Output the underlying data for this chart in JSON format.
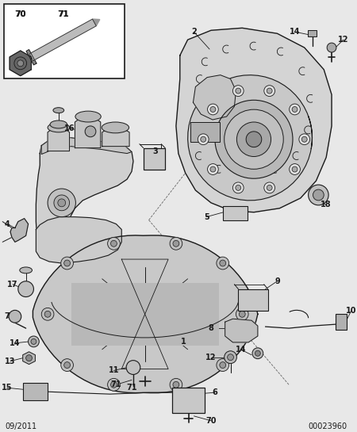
{
  "bg_color": "#e8e8e8",
  "fig_width": 4.5,
  "fig_height": 5.45,
  "dpi": 100,
  "bottom_left_text": "09/2011",
  "bottom_right_text": "00023960",
  "line_color": "#1a1a1a",
  "lw_main": 0.8
}
